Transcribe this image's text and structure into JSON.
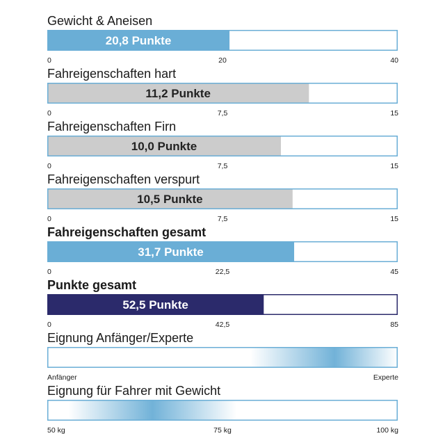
{
  "chart_data": {
    "type": "bar",
    "orientation": "horizontal",
    "colors": {
      "blue": "#6aaed6",
      "gray": "#cccccc",
      "navy": "#2b2a6b",
      "outline": "#6aaed6",
      "outline_navy": "#2b2a6b"
    },
    "rows": [
      {
        "title": "Gewicht & Aneisen",
        "bold": false,
        "kind": "bar",
        "value": 20.8,
        "max": 40,
        "label": "20,8 Punkte",
        "color": "blue",
        "ticks": [
          "0",
          "20",
          "40"
        ]
      },
      {
        "title": "Fahreigenschaften hart",
        "bold": false,
        "kind": "bar",
        "value": 11.2,
        "max": 15,
        "label": "11,2 Punkte",
        "color": "gray",
        "ticks": [
          "0",
          "7,5",
          "15"
        ]
      },
      {
        "title": "Fahreigenschaften Firn",
        "bold": false,
        "kind": "bar",
        "value": 10.0,
        "max": 15,
        "label": "10,0 Punkte",
        "color": "gray",
        "ticks": [
          "0",
          "7,5",
          "15"
        ]
      },
      {
        "title": "Fahreigenschaften verspurt",
        "bold": false,
        "kind": "bar",
        "value": 10.5,
        "max": 15,
        "label": "10,5 Punkte",
        "color": "gray",
        "ticks": [
          "0",
          "7,5",
          "15"
        ]
      },
      {
        "title": "Fahreigenschaften gesamt",
        "bold": true,
        "kind": "bar",
        "value": 31.7,
        "max": 45,
        "label": "31,7 Punkte",
        "color": "blue",
        "ticks": [
          "0",
          "22,5",
          "45"
        ]
      },
      {
        "title": "Punkte gesamt",
        "bold": true,
        "kind": "bar",
        "value": 52.5,
        "max": 85,
        "label": "52,5 Punkte",
        "color": "navy",
        "ticks": [
          "0",
          "42,5",
          "85"
        ]
      },
      {
        "title": "Eignung Anfänger/Experte",
        "bold": false,
        "kind": "gradient",
        "center": 0.82,
        "spread": 0.24,
        "ticks": [
          "Anfänger",
          "Experte"
        ]
      },
      {
        "title": "Eignung für Fahrer mit Gewicht",
        "bold": false,
        "kind": "gradient",
        "center": 0.3,
        "spread": 0.24,
        "ticks": [
          "50 kg",
          "75 kg",
          "100 kg"
        ]
      }
    ]
  }
}
